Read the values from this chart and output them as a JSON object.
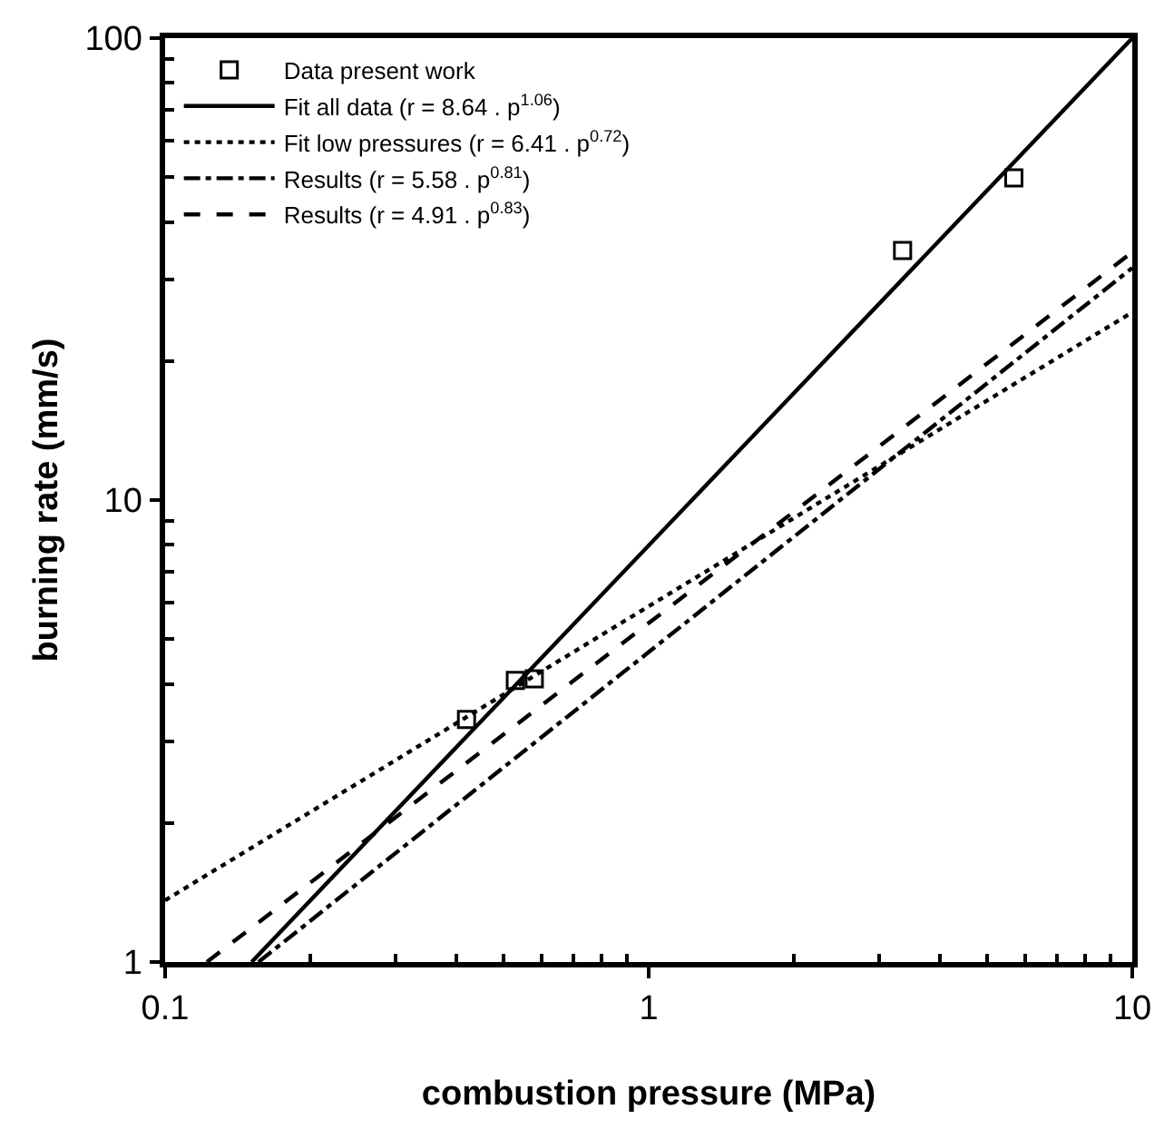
{
  "chart_data": {
    "type": "line",
    "xlabel": "combustion pressure (MPa)",
    "ylabel": "burning rate (mm/s)",
    "log": "xy",
    "xlim": [
      0.1,
      10
    ],
    "ylim": [
      1,
      100
    ],
    "xticks": [
      0.1,
      1,
      10
    ],
    "yticks": [
      1,
      10,
      100
    ],
    "legend": "top left",
    "series": [
      {
        "name": "Data present work",
        "type": "scatter",
        "marker": "square",
        "color": "#000000",
        "x": [
          0.42,
          0.53,
          0.58,
          3.35,
          5.69
        ],
        "values": [
          3.35,
          4.07,
          4.1,
          34.7,
          49.8
        ]
      },
      {
        "name": "Fit all data (r = 8.64 . p$^{1.06}$)",
        "line_style": "solid",
        "color": "#000000",
        "x": [
          0.151,
          10
        ],
        "values": [
          1,
          100
        ]
      },
      {
        "name": "Fit low pressures (r = 6.41 . p$^{0.72}$)",
        "line_style": "dotted",
        "color": "#000000",
        "x": [
          0.1,
          10
        ],
        "values": [
          1.36,
          25.5
        ]
      },
      {
        "name": "Results (r = 5.58 . p$^{0.81}$)",
        "line_style": "dashdot",
        "color": "#000000",
        "x": [
          0.156,
          10
        ],
        "values": [
          1,
          31.8
        ]
      },
      {
        "name": "Results (r = 4.91 . p$^{0.83}$)",
        "line_style": "dashed",
        "color": "#000000",
        "x": [
          0.122,
          10
        ],
        "values": [
          1,
          34.4
        ]
      }
    ]
  }
}
